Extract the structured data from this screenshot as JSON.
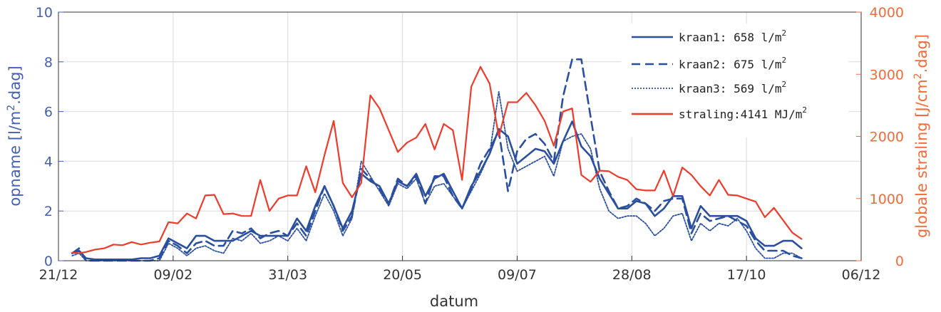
{
  "chart_data": {
    "type": "line",
    "title": "",
    "xlabel": "datum",
    "ylabel_left": "opname [l/m².dag]",
    "ylabel_right": "globale straling [J/cm².dag]",
    "x_ticks": [
      "21/12",
      "09/02",
      "31/03",
      "20/05",
      "09/07",
      "28/08",
      "17/10",
      "06/12"
    ],
    "x_tick_days": [
      0,
      50,
      100,
      150,
      200,
      250,
      300,
      350
    ],
    "xlim": [
      0,
      350
    ],
    "ylim_left": [
      0,
      10
    ],
    "yticks_left": [
      "0",
      "2",
      "4",
      "6",
      "8",
      "10"
    ],
    "ylim_right": [
      0,
      4000
    ],
    "yticks_right": [
      "0",
      "1000",
      "2000",
      "3000",
      "4000"
    ],
    "grid": true,
    "legend_position": "top-right",
    "colors": {
      "blue": "#2a4f9e",
      "red": "#ef3b2c",
      "left_axis": "#4560b3",
      "right_axis": "#f26b3a"
    },
    "x": [
      6,
      9,
      12,
      16,
      20,
      24,
      28,
      32,
      36,
      40,
      44,
      48,
      52,
      56,
      60,
      64,
      68,
      72,
      76,
      80,
      84,
      88,
      92,
      96,
      100,
      104,
      108,
      112,
      116,
      120,
      124,
      128,
      132,
      136,
      140,
      144,
      148,
      152,
      156,
      160,
      164,
      168,
      172,
      176,
      180,
      184,
      188,
      192,
      196,
      200,
      204,
      208,
      212,
      216,
      220,
      224,
      228,
      232,
      236,
      240,
      244,
      248,
      252,
      256,
      260,
      264,
      268,
      272,
      276,
      280,
      284,
      288,
      292,
      296,
      300,
      304,
      308,
      312,
      316,
      320,
      324
    ],
    "series": [
      {
        "name": "kraan1: 658 l/m²",
        "axis": "left",
        "style": "solid",
        "values": [
          0.3,
          0.4,
          0.1,
          0.05,
          0.05,
          0.05,
          0.05,
          0.05,
          0.1,
          0.1,
          0.2,
          0.9,
          0.7,
          0.5,
          1.0,
          1.0,
          0.8,
          0.8,
          0.8,
          1.0,
          1.2,
          1.0,
          1.0,
          1.0,
          1.0,
          1.7,
          1.2,
          2.2,
          3.0,
          2.2,
          1.3,
          2.0,
          3.5,
          3.2,
          3.0,
          2.3,
          3.2,
          3.0,
          3.5,
          2.6,
          3.3,
          3.5,
          2.8,
          2.1,
          3.0,
          3.6,
          4.3,
          5.3,
          5.0,
          3.9,
          4.2,
          4.5,
          4.4,
          3.9,
          4.8,
          5.6,
          4.6,
          4.2,
          3.3,
          2.7,
          2.1,
          2.1,
          2.4,
          2.3,
          1.8,
          2.1,
          2.6,
          2.6,
          1.3,
          2.2,
          1.8,
          1.8,
          1.8,
          1.8,
          1.6,
          0.9,
          0.6,
          0.6,
          0.8,
          0.8,
          0.5
        ]
      },
      {
        "name": "kraan2: 675 l/m²",
        "axis": "left",
        "style": "dashed",
        "values": [
          0.3,
          0.5,
          0.0,
          0.0,
          0.0,
          0.0,
          0.0,
          0.0,
          0.0,
          0.0,
          0.1,
          0.8,
          0.6,
          0.3,
          0.7,
          0.8,
          0.6,
          0.6,
          1.2,
          1.1,
          1.3,
          0.9,
          1.1,
          1.2,
          1.0,
          1.5,
          1.0,
          2.0,
          3.0,
          2.2,
          1.2,
          1.8,
          3.7,
          3.3,
          2.9,
          2.3,
          3.3,
          3.0,
          3.4,
          2.3,
          3.4,
          3.4,
          2.6,
          2.1,
          2.9,
          3.9,
          4.5,
          5.2,
          2.8,
          4.4,
          4.9,
          5.1,
          4.7,
          4.0,
          6.6,
          8.1,
          8.1,
          5.8,
          3.6,
          2.8,
          2.1,
          2.2,
          2.5,
          2.3,
          2.0,
          2.4,
          2.5,
          2.5,
          1.1,
          1.9,
          1.6,
          1.7,
          1.8,
          1.6,
          1.4,
          0.8,
          0.4,
          0.4,
          0.4,
          0.2,
          0.1
        ]
      },
      {
        "name": "kraan3: 569 l/m²",
        "axis": "left",
        "style": "dotted",
        "values": [
          0.2,
          0.3,
          0.0,
          0.0,
          0.0,
          0.0,
          0.0,
          0.0,
          0.0,
          0.0,
          0.0,
          0.7,
          0.5,
          0.2,
          0.5,
          0.6,
          0.4,
          0.3,
          0.9,
          0.8,
          1.1,
          0.7,
          0.8,
          1.0,
          0.8,
          1.3,
          0.8,
          1.8,
          2.7,
          2.0,
          1.0,
          1.7,
          4.0,
          3.4,
          2.8,
          2.2,
          3.1,
          2.9,
          3.3,
          2.3,
          3.0,
          3.1,
          2.6,
          2.1,
          2.8,
          3.5,
          4.3,
          6.8,
          4.5,
          3.6,
          3.8,
          4.0,
          4.2,
          3.4,
          4.8,
          5.0,
          5.1,
          4.5,
          2.9,
          2.0,
          1.7,
          1.8,
          1.8,
          1.5,
          1.0,
          1.3,
          1.8,
          1.9,
          0.8,
          1.5,
          1.2,
          1.5,
          1.4,
          1.7,
          1.2,
          0.5,
          0.1,
          0.1,
          0.3,
          0.3,
          0.1
        ]
      },
      {
        "name": "straling:4141 MJ/m²",
        "axis": "right",
        "style": "solid",
        "values": [
          130,
          120,
          140,
          180,
          200,
          260,
          250,
          300,
          260,
          290,
          310,
          620,
          600,
          760,
          680,
          1050,
          1060,
          750,
          760,
          720,
          720,
          1300,
          800,
          1000,
          1050,
          1050,
          1520,
          1100,
          1700,
          2250,
          1250,
          1020,
          1250,
          2660,
          2450,
          2100,
          1750,
          1900,
          1980,
          2200,
          1790,
          2200,
          2100,
          1300,
          2800,
          3120,
          2850,
          2000,
          2550,
          2550,
          2700,
          2500,
          2250,
          1850,
          2400,
          2450,
          1380,
          1270,
          1450,
          1440,
          1350,
          1300,
          1150,
          1130,
          1130,
          1450,
          1040,
          1500,
          1380,
          1200,
          1050,
          1300,
          1060,
          1050,
          1000,
          950,
          700,
          850,
          650,
          450,
          350
        ]
      }
    ]
  },
  "legend": {
    "items": [
      {
        "text": "kraan1: 658 l/m",
        "sup": "2"
      },
      {
        "text": "kraan2: 675 l/m",
        "sup": "2"
      },
      {
        "text": "kraan3: 569 l/m",
        "sup": "2"
      },
      {
        "text": "straling:4141 MJ/m",
        "sup": "2"
      }
    ]
  },
  "axes_text": {
    "xlabel": "datum",
    "ylabel_left_main": "opname [l/m",
    "ylabel_left_sup": "2",
    "ylabel_left_tail": ".dag]",
    "ylabel_right_main": "globale straling [J/cm",
    "ylabel_right_sup": "2",
    "ylabel_right_tail": ".dag]"
  }
}
